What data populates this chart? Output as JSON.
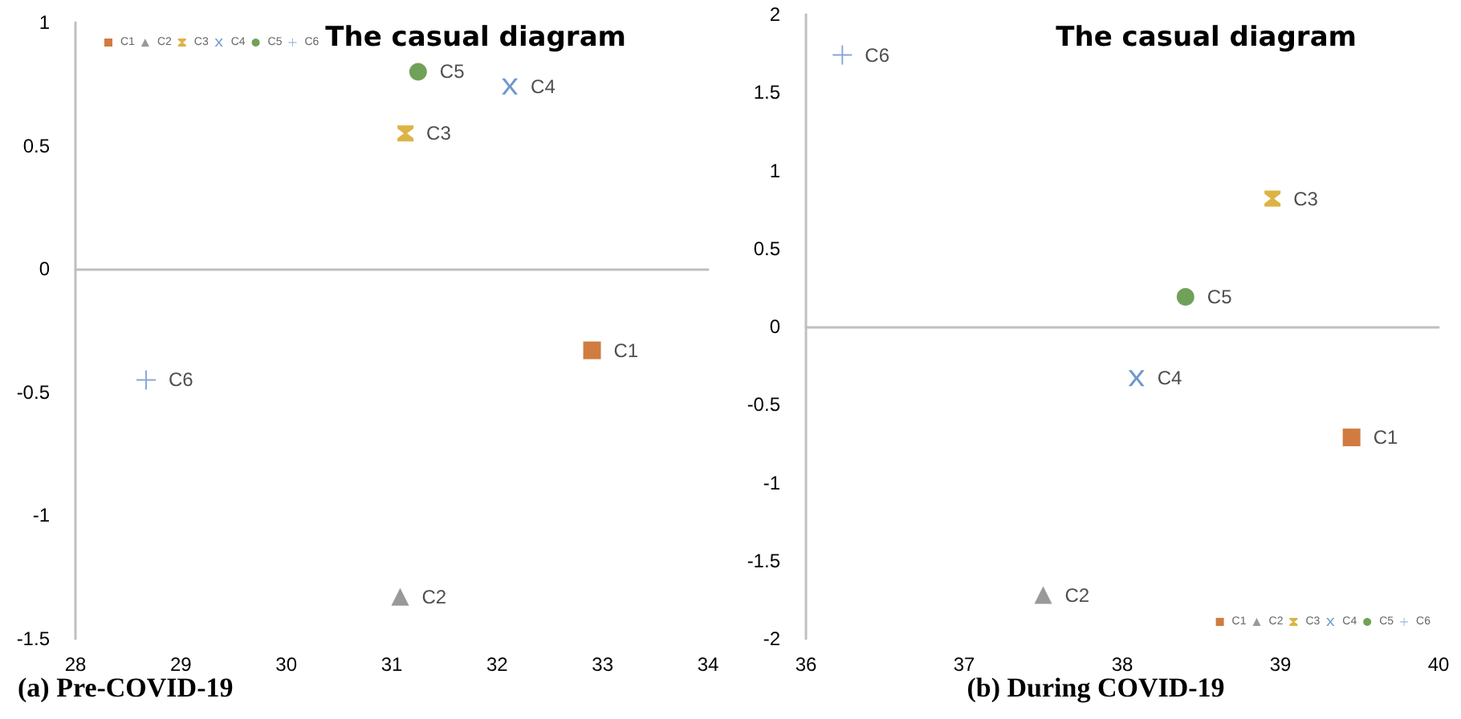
{
  "chart_data": [
    {
      "type": "scatter",
      "title": "The casual diagram",
      "subtitle": "(a) Pre-COVID-19",
      "xlim": [
        28,
        34
      ],
      "xticks": [
        28,
        29,
        30,
        31,
        32,
        33,
        34
      ],
      "ylim": [
        -1.5,
        1
      ],
      "yticks": [
        -1.5,
        -1,
        -0.5,
        0,
        0.5,
        1
      ],
      "legend": "top left",
      "series": [
        {
          "name": "C1",
          "color": "#c55a11",
          "marker": "square",
          "x": [
            32.9
          ],
          "values": [
            -0.33
          ]
        },
        {
          "name": "C2",
          "color": "#808080",
          "marker": "triangle",
          "x": [
            31.08
          ],
          "values": [
            -1.33
          ]
        },
        {
          "name": "C3",
          "color": "#d4a017",
          "x": [
            31.13
          ],
          "values": [
            0.55
          ]
        },
        {
          "name": "C4",
          "color": "#4a7ebb",
          "marker": "cross",
          "x": [
            32.12
          ],
          "values": [
            0.74
          ]
        },
        {
          "name": "C5",
          "color": "#4e8a2e",
          "marker": "circle",
          "x": [
            31.25
          ],
          "values": [
            0.8
          ]
        },
        {
          "name": "C6",
          "color": "#6a8fcf",
          "marker": "plus",
          "x": [
            28.67
          ],
          "values": [
            -0.45
          ]
        }
      ]
    },
    {
      "type": "scatter",
      "title": "The casual diagram",
      "subtitle": "(b) During COVID-19",
      "xlim": [
        36,
        40
      ],
      "xticks": [
        36,
        37,
        38,
        39,
        40
      ],
      "ylim": [
        -2,
        2
      ],
      "yticks": [
        -2,
        -1.5,
        -1,
        -0.5,
        0,
        0.5,
        1,
        1.5,
        2
      ],
      "legend": "bottom right",
      "series": [
        {
          "name": "C1",
          "color": "#c55a11",
          "marker": "square",
          "x": [
            39.45
          ],
          "values": [
            -0.71
          ]
        },
        {
          "name": "C2",
          "color": "#808080",
          "marker": "triangle",
          "x": [
            37.5
          ],
          "values": [
            -1.72
          ]
        },
        {
          "name": "C3",
          "color": "#d4a017",
          "x": [
            38.95
          ],
          "values": [
            0.82
          ]
        },
        {
          "name": "C4",
          "color": "#4a7ebb",
          "marker": "cross",
          "x": [
            38.09
          ],
          "values": [
            -0.33
          ]
        },
        {
          "name": "C5",
          "color": "#4e8a2e",
          "marker": "circle",
          "x": [
            38.4
          ],
          "values": [
            0.19
          ]
        },
        {
          "name": "C6",
          "color": "#6a8fcf",
          "marker": "plus",
          "x": [
            36.23
          ],
          "values": [
            1.74
          ]
        }
      ]
    }
  ]
}
